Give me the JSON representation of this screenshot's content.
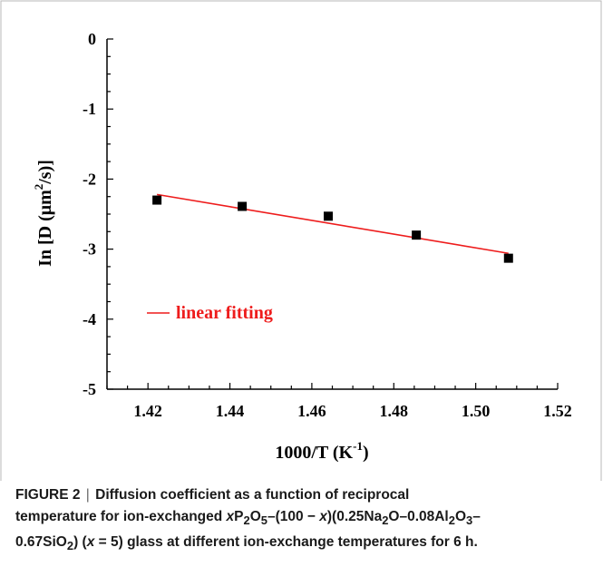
{
  "chart_data": {
    "type": "scatter",
    "xlabel": "1000/T (K",
    "xlabel_sup": "-1",
    "xlabel_end": ")",
    "ylabel": "In [D (μm",
    "ylabel_sup": "2",
    "ylabel_end": "/s)]",
    "xlim": [
      1.41,
      1.52
    ],
    "ylim": [
      -5,
      0
    ],
    "x_ticks": [
      1.42,
      1.44,
      1.46,
      1.48,
      1.5,
      1.52
    ],
    "x_tick_labels": [
      "1.42",
      "1.44",
      "1.46",
      "1.48",
      "1.50",
      "1.52"
    ],
    "y_ticks": [
      0,
      -1,
      -2,
      -3,
      -4,
      -5
    ],
    "y_tick_labels": [
      "0",
      "-1",
      "-2",
      "-3",
      "-4",
      "-5"
    ],
    "series": [
      {
        "kind": "points",
        "marker": "square",
        "color": "#000000",
        "x": [
          1.4222,
          1.443,
          1.464,
          1.4855,
          1.508
        ],
        "y": [
          -2.3,
          -2.39,
          -2.53,
          -2.8,
          -3.13
        ]
      },
      {
        "kind": "line",
        "name": "linear fitting",
        "color": "#ee1c1c",
        "x": [
          1.4222,
          1.508
        ],
        "y": [
          -2.22,
          -3.06
        ]
      }
    ],
    "legend": "lower-left",
    "grid": false
  },
  "caption": {
    "figure_label": "FIGURE 2",
    "separator": "|",
    "line1": "Diffusion coefficient as a function of reciprocal",
    "line2_a": "temperature for ion-exchanged ",
    "line2_var": "x",
    "line2_b": "P",
    "line2_sub1": "2",
    "line2_c": "O",
    "line2_sub2": "5",
    "line2_d": "–(100 − ",
    "line2_var2": "x",
    "line2_e": ")(0.25Na",
    "line2_sub3": "2",
    "line2_f": "O–0.08Al",
    "line2_sub4": "2",
    "line2_g": "O",
    "line2_sub5": "3",
    "line2_h": "–",
    "line3_a": "0.67SiO",
    "line3_sub1": "2",
    "line3_b": ") (",
    "line3_var": "x",
    "line3_c": " = 5) glass at different ion-exchange temperatures for 6 h."
  }
}
